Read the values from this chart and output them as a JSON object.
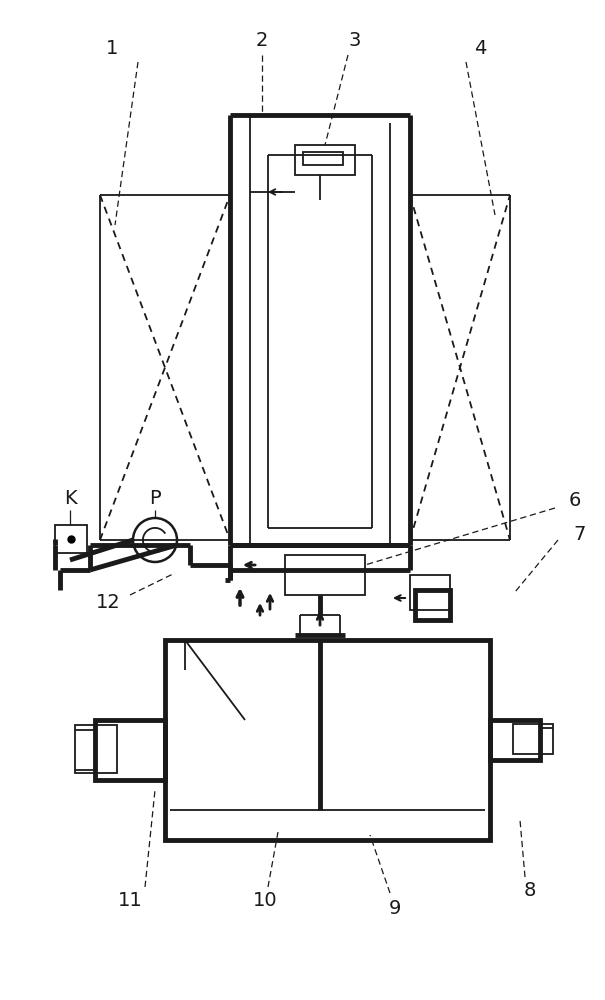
{
  "bg_color": "#ffffff",
  "line_color": "#1a1a1a",
  "thick_lw": 3.5,
  "thin_lw": 1.3,
  "label_fontsize": 14,
  "fig_width": 6.05,
  "fig_height": 10.0
}
